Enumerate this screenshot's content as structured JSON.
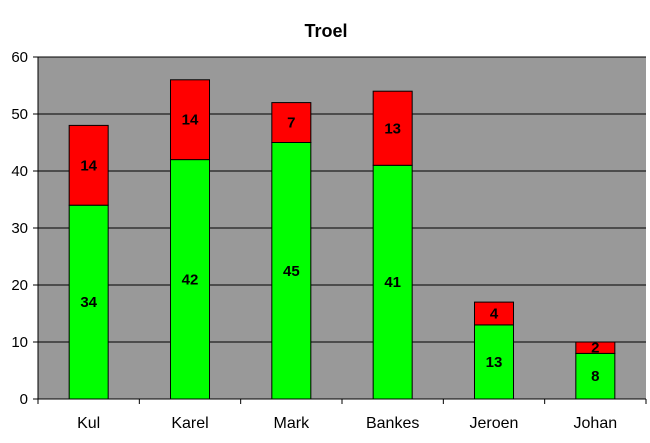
{
  "chart_data": {
    "type": "bar",
    "stacked": true,
    "title": "Troel",
    "xlabel": "",
    "ylabel": "",
    "categories": [
      "Kul",
      "Karel",
      "Mark",
      "Bankes",
      "Jeroen",
      "Johan"
    ],
    "series": [
      {
        "values": [
          34,
          42,
          45,
          41,
          13,
          8
        ],
        "color": "#00ff00"
      },
      {
        "values": [
          14,
          14,
          7,
          13,
          4,
          2
        ],
        "color": "#ff0000"
      }
    ],
    "ylim": [
      0,
      60
    ],
    "yticks": [
      0,
      10,
      20,
      30,
      40,
      50,
      60
    ],
    "grid": true,
    "legend": "none",
    "plot_background": "#999999",
    "data_labels": true
  }
}
